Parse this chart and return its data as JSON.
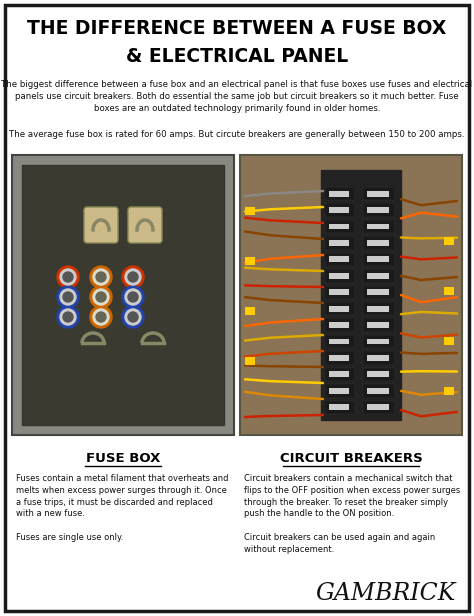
{
  "title_line1": "THE DIFFERENCE BETWEEN A FUSE BOX",
  "title_line2": "& ELECTRICAL PANEL",
  "intro_text": "The biggest difference between a fuse box and an electrical panel is that fuse boxes use fuses and electrical\npanels use circuit breakers. Both do essential the same job but circuit breakers so it much better. Fuse\nboxes are an outdated technology primarily found in older homes.",
  "avg_text": "The average fuse box is rated for 60 amps. But circute breakers are generally between 150 to 200 amps.",
  "fuse_box_label": "FUSE BOX",
  "circuit_breakers_label": "CIRCUIT BREAKERS",
  "fuse_box_desc": "Fuses contain a metal filament that overheats and\nmelts when excess power surges through it. Once\na fuse trips, it must be discarded and replaced\nwith a new fuse.\n\nFuses are single use only.",
  "circuit_breakers_desc": "Circuit breakers contain a mechanical switch that\nflips to the OFF position when excess power surges\nthrough the breaker. To reset the breaker simply\npush the handle to the ON position.\n\nCircuit breakers can be used again and again\nwithout replacement.",
  "brand": "GAMBRICK",
  "bg_color": "#ffffff",
  "border_color": "#1a1a1a",
  "title_color": "#000000",
  "text_color": "#111111",
  "photo_left_color": "#7a7a6a",
  "photo_right_color": "#9a7a55"
}
